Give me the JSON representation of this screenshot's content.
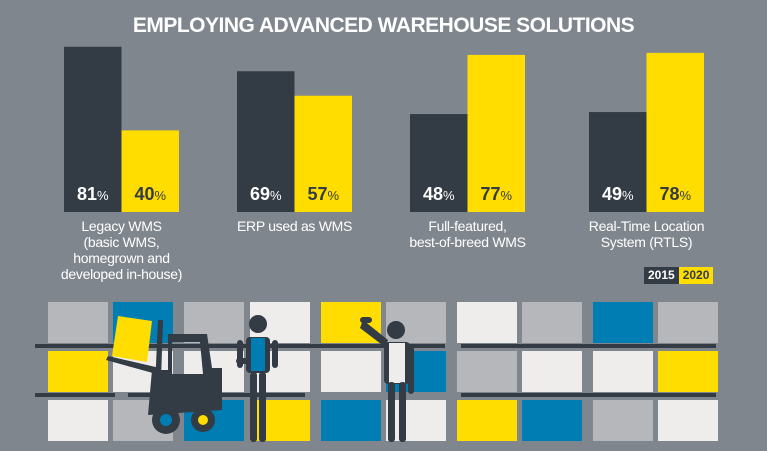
{
  "chart_data": {
    "type": "bar",
    "title": "EMPLOYING ADVANCED WAREHOUSE SOLUTIONS",
    "categories": [
      [
        "Legacy WMS",
        "(basic WMS,",
        "homegrown and",
        "developed in-house)"
      ],
      [
        "ERP used as WMS"
      ],
      [
        "Full-featured,",
        "best-of-breed WMS"
      ],
      [
        "Real-Time Location",
        "System (RTLS)"
      ]
    ],
    "series": [
      {
        "name": "2015",
        "values": [
          81,
          69,
          48,
          49
        ],
        "color": "#333b44"
      },
      {
        "name": "2020",
        "values": [
          40,
          57,
          77,
          78
        ],
        "color": "#ffdd00"
      }
    ],
    "value_suffix": "%",
    "ylim": [
      0,
      100
    ],
    "grid": false,
    "legend": "bottom-right"
  },
  "colors": {
    "background": "#80868d",
    "dark": "#333b44",
    "yellow": "#ffdd00",
    "blue": "#007db3",
    "light": "#eeedeb",
    "grey": "#b5b7ba"
  }
}
